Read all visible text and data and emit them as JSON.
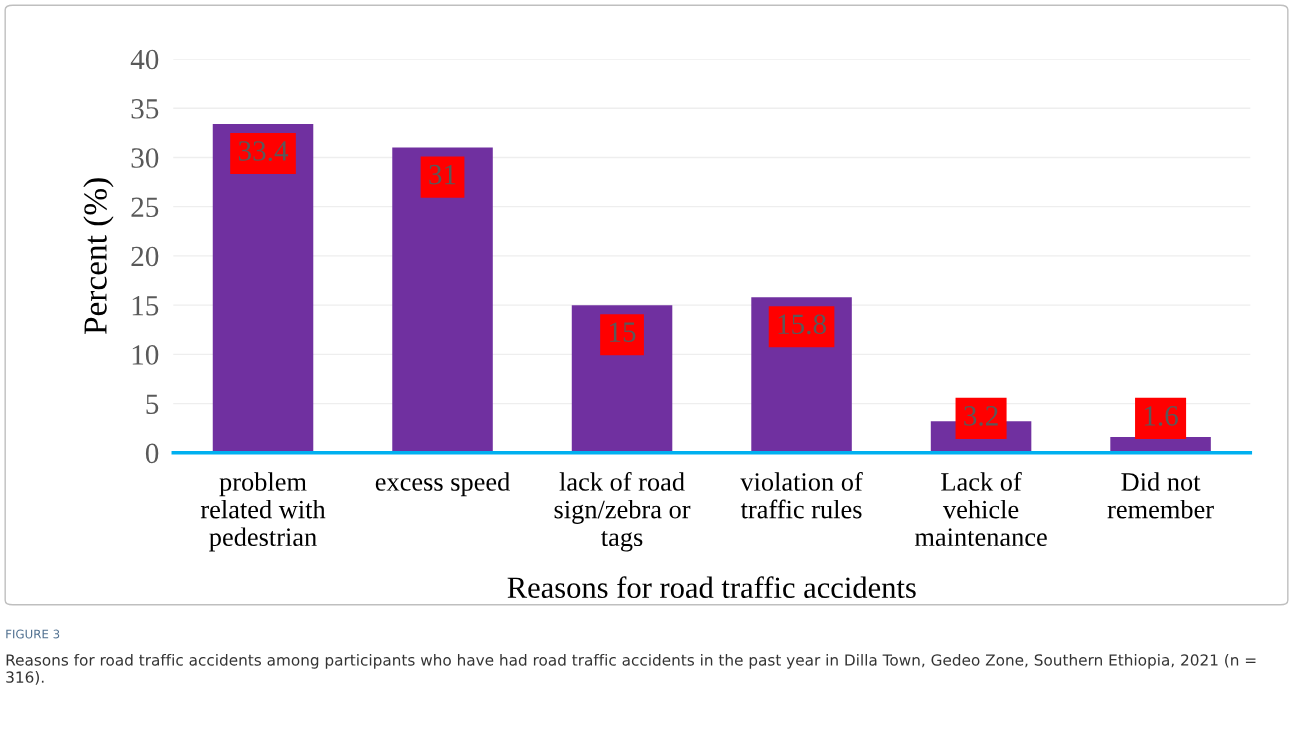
{
  "chart_data": {
    "type": "bar",
    "xlabel": "Reasons for road traffic accidents",
    "ylabel": "Percent (%)",
    "categories": [
      "problem\nrelated with\npedestrian",
      "excess speed",
      "lack of road\nsign/zebra or\ntags",
      "violation of\ntraffic rules",
      "Lack of\nvehicle\nmaintenance",
      "Did not\nremember"
    ],
    "values": [
      33.4,
      31,
      15,
      15.8,
      3.2,
      1.6
    ],
    "color": "#7030a0",
    "ylim": [
      0,
      40
    ],
    "yticks": [
      0,
      5,
      10,
      15,
      20,
      25,
      30,
      35,
      40
    ],
    "grid": "y",
    "data_labels": true,
    "annotations": [
      "FIGURE 3",
      "Reasons for road traffic accidents among participants who have had road traffic accidents in the past year in Dilla Town, Gedeo Zone, Southern Ethiopia, 2021 (n = 316)."
    ]
  }
}
